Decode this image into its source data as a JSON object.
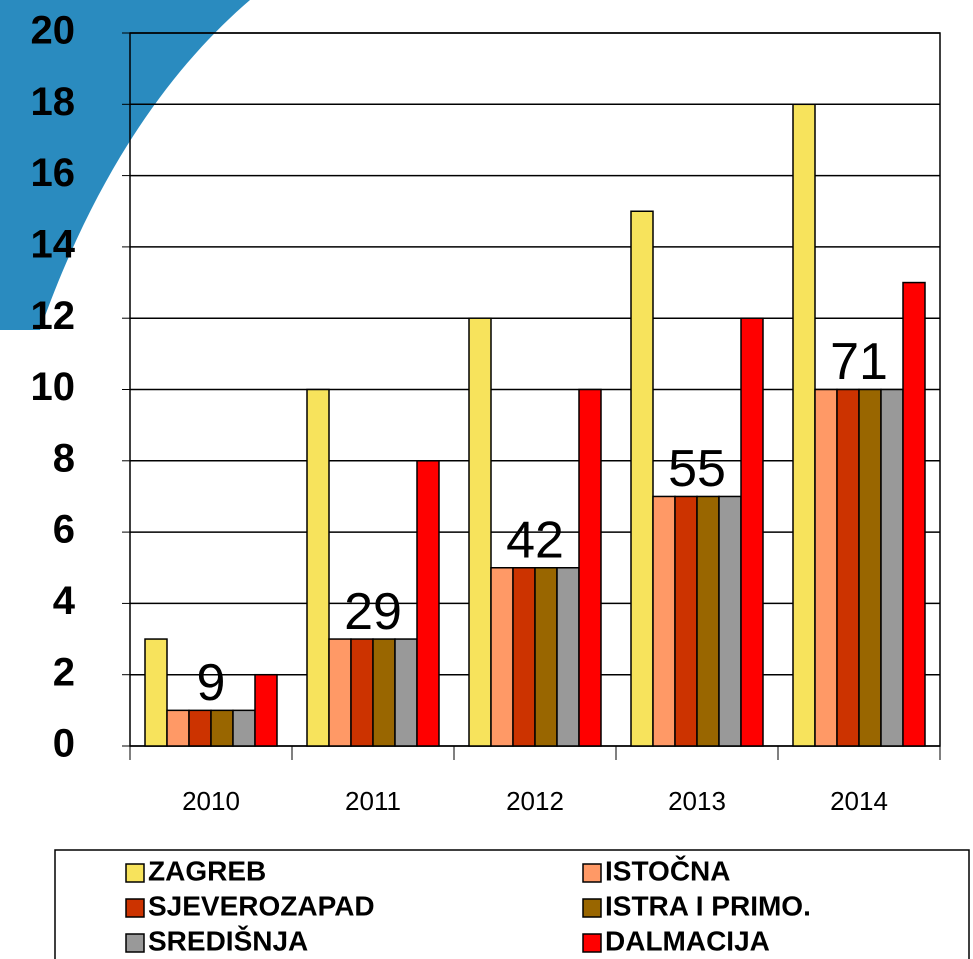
{
  "chart_data": {
    "type": "bar",
    "categories": [
      "2010",
      "2011",
      "2012",
      "2013",
      "2014"
    ],
    "series": [
      {
        "name": "ZAGREB",
        "color": "#f7e35c",
        "values": [
          3,
          10,
          12,
          15,
          18
        ]
      },
      {
        "name": "ISTOČNA",
        "color": "#ff9966",
        "values": [
          1,
          3,
          5,
          7,
          10
        ]
      },
      {
        "name": "SJEVEROZAPAD",
        "color": "#cc3300",
        "values": [
          1,
          3,
          5,
          7,
          10
        ]
      },
      {
        "name": "ISTRA I PRIMO.",
        "color": "#996600",
        "values": [
          1,
          3,
          5,
          7,
          10
        ]
      },
      {
        "name": "SREDIŠNJA",
        "color": "#999999",
        "values": [
          1,
          3,
          5,
          7,
          10
        ]
      },
      {
        "name": "DALMACIJA",
        "color": "#ff0000",
        "values": [
          2,
          8,
          10,
          12,
          13
        ]
      }
    ],
    "annotations": [
      "9",
      "29",
      "42",
      "55",
      "71"
    ],
    "ylim": [
      0,
      20
    ],
    "yticks": [
      0,
      2,
      4,
      6,
      8,
      10,
      12,
      14,
      16,
      18,
      20
    ],
    "grid": true
  }
}
